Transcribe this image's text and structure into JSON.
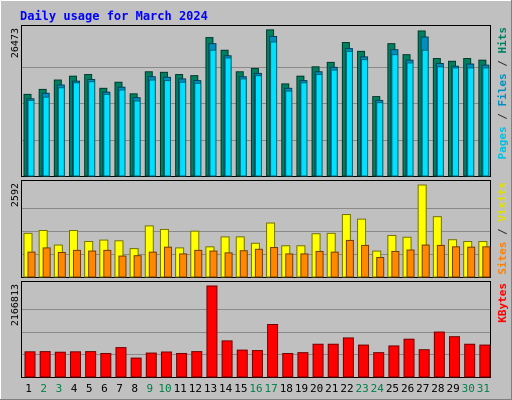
{
  "chart_data": {
    "type": "bar",
    "title": "Daily usage for March 2024",
    "days": [
      {
        "label": "1",
        "weekend": false
      },
      {
        "label": "2",
        "weekend": true
      },
      {
        "label": "3",
        "weekend": true
      },
      {
        "label": "4",
        "weekend": false
      },
      {
        "label": "5",
        "weekend": false
      },
      {
        "label": "6",
        "weekend": false
      },
      {
        "label": "7",
        "weekend": false
      },
      {
        "label": "8",
        "weekend": false
      },
      {
        "label": "9",
        "weekend": true
      },
      {
        "label": "10",
        "weekend": true
      },
      {
        "label": "11",
        "weekend": false
      },
      {
        "label": "12",
        "weekend": false
      },
      {
        "label": "13",
        "weekend": false
      },
      {
        "label": "14",
        "weekend": false
      },
      {
        "label": "15",
        "weekend": false
      },
      {
        "label": "16",
        "weekend": true
      },
      {
        "label": "17",
        "weekend": true
      },
      {
        "label": "18",
        "weekend": false
      },
      {
        "label": "19",
        "weekend": false
      },
      {
        "label": "20",
        "weekend": false
      },
      {
        "label": "21",
        "weekend": false
      },
      {
        "label": "22",
        "weekend": false
      },
      {
        "label": "23",
        "weekend": true
      },
      {
        "label": "24",
        "weekend": true
      },
      {
        "label": "25",
        "weekend": false
      },
      {
        "label": "26",
        "weekend": false
      },
      {
        "label": "27",
        "weekend": false
      },
      {
        "label": "28",
        "weekend": false
      },
      {
        "label": "29",
        "weekend": false
      },
      {
        "label": "30",
        "weekend": true
      },
      {
        "label": "31",
        "weekend": true
      }
    ],
    "panels": [
      {
        "id": "hits",
        "max_label": "26473",
        "max": 26473,
        "legend": [
          {
            "text": "Pages",
            "color": "#00c0e0"
          },
          {
            "text": " / ",
            "color": "#333333"
          },
          {
            "text": "Files",
            "color": "#0090c0"
          },
          {
            "text": " / ",
            "color": "#333333"
          },
          {
            "text": "Hits",
            "color": "#008060"
          }
        ],
        "series": [
          {
            "role": "hits",
            "color": "#008060",
            "values": [
              14800,
              15700,
              17400,
              18100,
              18400,
              15900,
              17000,
              14900,
              18900,
              18800,
              18400,
              18200,
              25100,
              22800,
              18900,
              19500,
              26500,
              16700,
              18100,
              19800,
              20600,
              24200,
              22600,
              14400,
              24000,
              22000,
              26300,
              21300,
              20800,
              21300,
              21000
            ]
          },
          {
            "role": "files",
            "color": "#0090c0",
            "values": [
              14000,
              15000,
              16500,
              17200,
              17500,
              15200,
              16100,
              14200,
              18000,
              17900,
              17600,
              17300,
              24000,
              21800,
              18000,
              18600,
              25300,
              15900,
              17300,
              18900,
              19700,
              23100,
              21600,
              13700,
              22900,
              21000,
              25200,
              20400,
              19900,
              20300,
              20100
            ]
          },
          {
            "role": "pages",
            "color": "#00e0ff",
            "values": [
              13700,
              14300,
              16000,
              16900,
              17100,
              14800,
              15600,
              13600,
              17400,
              17300,
              17000,
              16800,
              22800,
              21400,
              17600,
              18200,
              24300,
              15400,
              16900,
              18400,
              19200,
              22600,
              21100,
              13300,
              22000,
              20500,
              22800,
              19800,
              19600,
              19600,
              19600
            ]
          }
        ]
      },
      {
        "id": "visits",
        "max_label": "2592",
        "max": 2592,
        "legend": [
          {
            "text": "Sites",
            "color": "#ff8000"
          },
          {
            "text": " / ",
            "color": "#333333"
          },
          {
            "text": "Visits",
            "color": "#e0e000"
          }
        ],
        "series": [
          {
            "role": "visits",
            "color": "#ffff00",
            "values": [
              1230,
              1310,
              900,
              1310,
              1000,
              1040,
              1020,
              800,
              1440,
              1340,
              820,
              1290,
              850,
              1130,
              1130,
              950,
              1520,
              880,
              880,
              1220,
              1230,
              1760,
              1630,
              730,
              1170,
              1120,
              2592,
              1700,
              1050,
              1000,
              1000
            ]
          },
          {
            "role": "sites",
            "color": "#ff8800",
            "values": [
              700,
              820,
              690,
              750,
              730,
              750,
              590,
              600,
              700,
              840,
              650,
              750,
              730,
              680,
              740,
              780,
              830,
              650,
              650,
              720,
              700,
              1030,
              890,
              550,
              720,
              760,
              900,
              890,
              850,
              840,
              850
            ]
          }
        ]
      },
      {
        "id": "kbytes",
        "max_label": "2166813",
        "max": 2166813,
        "legend": [
          {
            "text": "KBytes",
            "color": "#ff0000"
          }
        ],
        "series": [
          {
            "role": "kbytes",
            "color": "#ff0000",
            "values": [
              600000,
              605000,
              590000,
              600000,
              605000,
              560000,
              700000,
              450000,
              570000,
              595000,
              560000,
              605000,
              2166813,
              860000,
              640000,
              630000,
              1250000,
              560000,
              580000,
              780000,
              780000,
              930000,
              760000,
              580000,
              740000,
              900000,
              650000,
              1070000,
              960000,
              780000,
              760000
            ]
          }
        ]
      }
    ]
  }
}
